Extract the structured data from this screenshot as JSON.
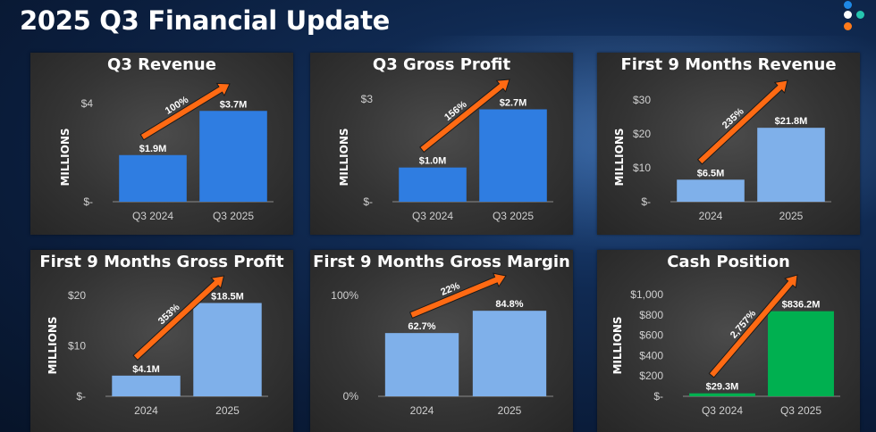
{
  "page": {
    "title": "2025 Q3 Financial Update"
  },
  "decor": {
    "dot_colors": [
      "#1e88e5",
      "#ffffff",
      "#26c6b0",
      "#ff7a1a"
    ]
  },
  "colors": {
    "arrow": "#ff6a13",
    "dark_blue": "#2f7de1",
    "light_blue": "#7fb0ea",
    "green": "#00b050",
    "axis_text": "#d0d0d0"
  },
  "chart_data": [
    {
      "type": "bar",
      "title": "Q3 Revenue",
      "ylabel": "MILLIONS",
      "categories": [
        "Q3 2024",
        "Q3 2025"
      ],
      "values": [
        1.9,
        3.7
      ],
      "data_labels": [
        "$1.9M",
        "$3.7M"
      ],
      "ylim": [
        0,
        4
      ],
      "yticks": [
        {
          "value": 0,
          "label": "$-"
        },
        {
          "value": 4,
          "label": "$4"
        }
      ],
      "growth_label": "100%",
      "bar_color": "#2f7de1"
    },
    {
      "type": "bar",
      "title": "Q3 Gross Profit",
      "ylabel": "MILLIONS",
      "categories": [
        "Q3 2024",
        "Q3 2025"
      ],
      "values": [
        1.0,
        2.7
      ],
      "data_labels": [
        "$1.0M",
        "$2.7M"
      ],
      "ylim": [
        0,
        3
      ],
      "yticks": [
        {
          "value": 0,
          "label": "$-"
        },
        {
          "value": 3,
          "label": "$3"
        }
      ],
      "growth_label": "156%",
      "bar_color": "#2f7de1"
    },
    {
      "type": "bar",
      "title": "First 9 Months Revenue",
      "ylabel": "MILLIONS",
      "categories": [
        "2024",
        "2025"
      ],
      "values": [
        6.5,
        21.8
      ],
      "data_labels": [
        "$6.5M",
        "$21.8M"
      ],
      "ylim": [
        0,
        30
      ],
      "yticks": [
        {
          "value": 0,
          "label": "$-"
        },
        {
          "value": 10,
          "label": "$10"
        },
        {
          "value": 20,
          "label": "$20"
        },
        {
          "value": 30,
          "label": "$30"
        }
      ],
      "growth_label": "235%",
      "bar_color": "#7fb0ea"
    },
    {
      "type": "bar",
      "title": "First 9 Months Gross Profit",
      "ylabel": "MILLIONS",
      "categories": [
        "2024",
        "2025"
      ],
      "values": [
        4.1,
        18.5
      ],
      "data_labels": [
        "$4.1M",
        "$18.5M"
      ],
      "ylim": [
        0,
        20
      ],
      "yticks": [
        {
          "value": 0,
          "label": "$-"
        },
        {
          "value": 10,
          "label": "$10"
        },
        {
          "value": 20,
          "label": "$20"
        }
      ],
      "growth_label": "353%",
      "bar_color": "#7fb0ea"
    },
    {
      "type": "bar",
      "title": "First 9 Months Gross Margin",
      "ylabel": "",
      "categories": [
        "2024",
        "2025"
      ],
      "values": [
        62.7,
        84.8
      ],
      "data_labels": [
        "62.7%",
        "84.8%"
      ],
      "ylim": [
        0,
        100
      ],
      "yticks": [
        {
          "value": 0,
          "label": "0%"
        },
        {
          "value": 100,
          "label": "100%"
        }
      ],
      "growth_label": "22%",
      "bar_color": "#7fb0ea"
    },
    {
      "type": "bar",
      "title": "Cash Position",
      "ylabel": "MILLIONS",
      "categories": [
        "Q3 2024",
        "Q3 2025"
      ],
      "values": [
        29.3,
        836.2
      ],
      "data_labels": [
        "$29.3M",
        "$836.2M"
      ],
      "ylim": [
        0,
        1000
      ],
      "yticks": [
        {
          "value": 0,
          "label": "$-"
        },
        {
          "value": 200,
          "label": "$200"
        },
        {
          "value": 400,
          "label": "$400"
        },
        {
          "value": 600,
          "label": "$600"
        },
        {
          "value": 800,
          "label": "$800"
        },
        {
          "value": 1000,
          "label": "$1,000"
        }
      ],
      "growth_label": "2,757%",
      "bar_color": "#00b050"
    }
  ]
}
